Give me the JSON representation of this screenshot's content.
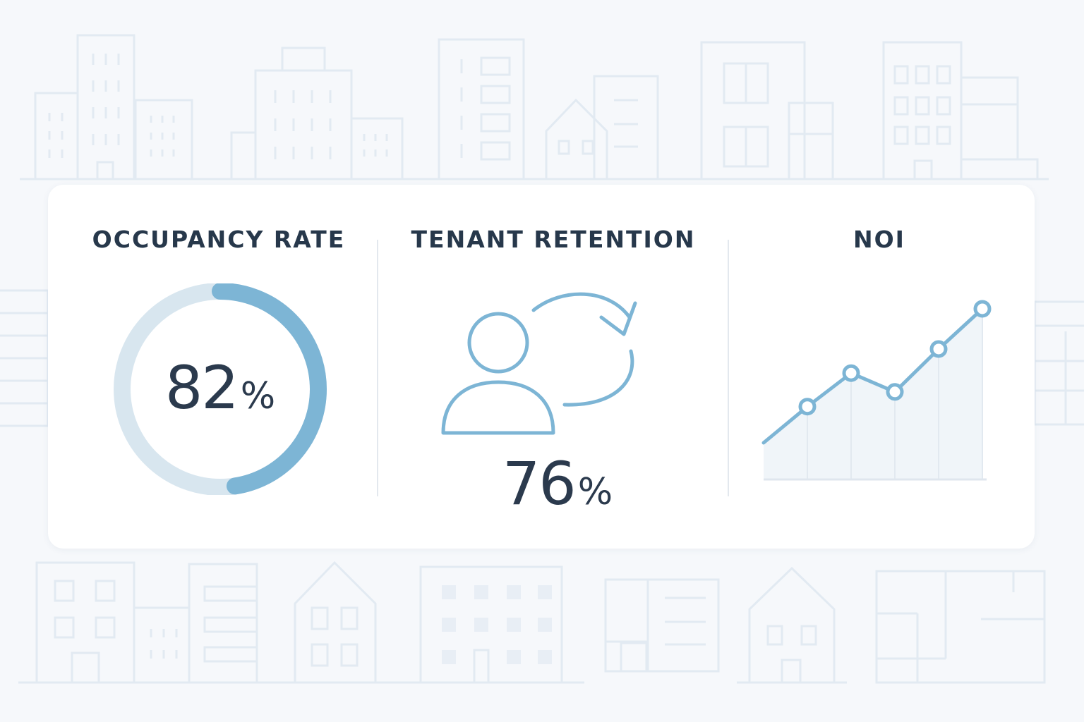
{
  "kpis": [
    {
      "title": "OCCUPANCY RATE",
      "value": "82",
      "unit": "%",
      "fraction": 0.82,
      "icon": "donut-chart-icon"
    },
    {
      "title": "TENANT RETENTION",
      "value": "76",
      "unit": "%",
      "fraction": 0.76,
      "icon": "tenant-retention-icon"
    },
    {
      "title": "NOI",
      "icon": "line-chart-icon"
    }
  ],
  "chart_data": {
    "type": "area",
    "title": "NOI",
    "xlabel": "",
    "ylabel": "",
    "x": [
      1,
      2,
      3,
      4,
      5,
      6
    ],
    "series": [
      {
        "values": [
          0,
          0.27,
          0.52,
          0.38,
          0.7,
          1.0
        ]
      }
    ],
    "markers_on_points": [
      2,
      3,
      4,
      5,
      6
    ],
    "grid": false,
    "legend": "none"
  },
  "colors": {
    "accent": "#7db5d5",
    "accent_light": "#d8e6ef",
    "text": "#2b3a4d",
    "background": "#f6f8fb",
    "card": "#ffffff",
    "building_line": "#e2eaf2"
  }
}
